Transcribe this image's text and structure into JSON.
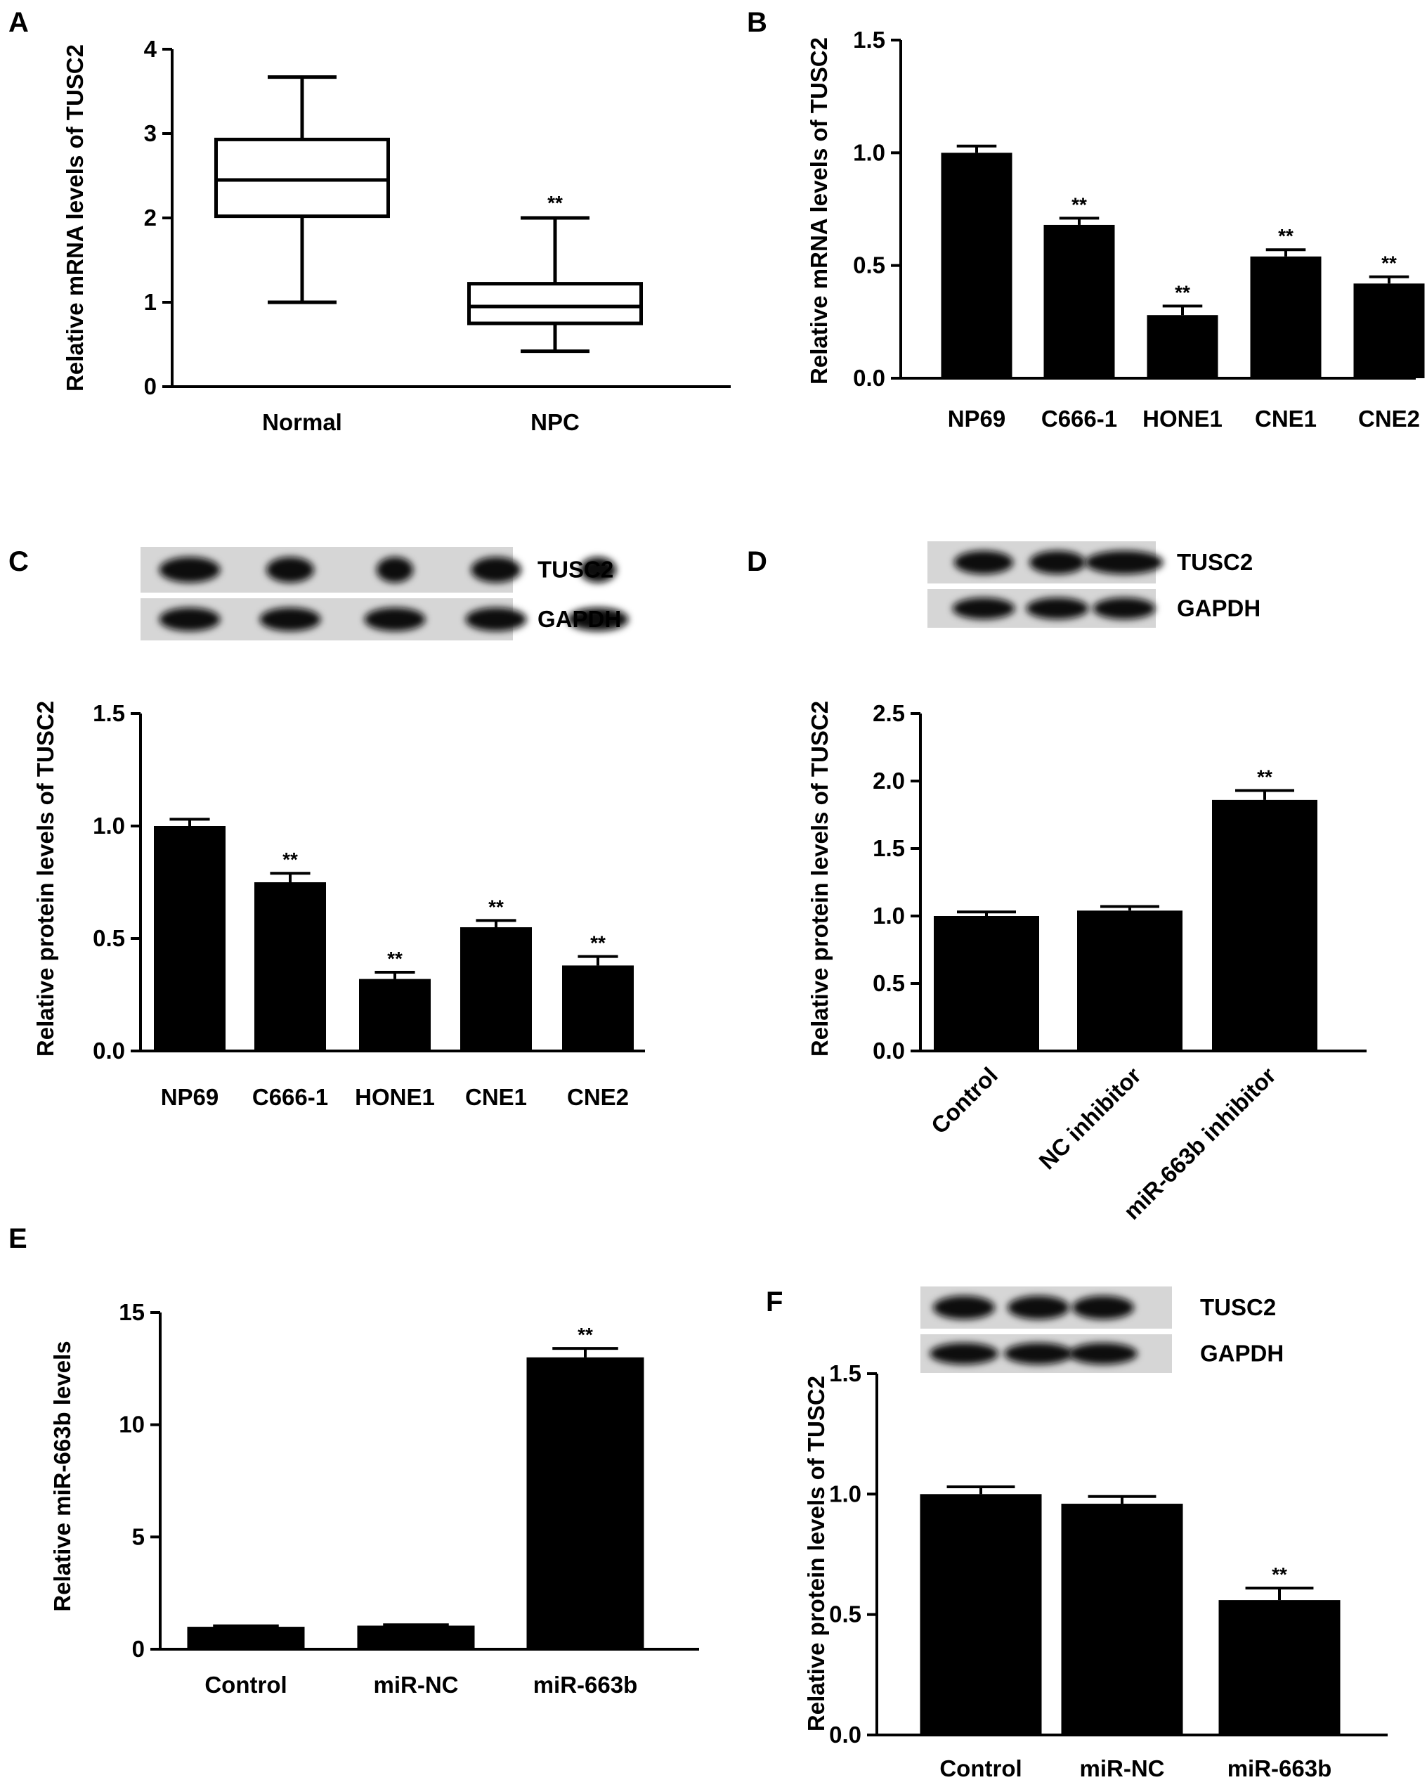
{
  "chart_data": [
    {
      "panel": "A",
      "type": "box",
      "ylabel": "Relative mRNA levels of TUSC2",
      "ylim": [
        0,
        4
      ],
      "yticks": [
        "0",
        "1",
        "2",
        "3",
        "4"
      ],
      "categories": [
        "Normal",
        "NPC"
      ],
      "boxes": [
        {
          "min": 1.0,
          "q1": 2.02,
          "median": 2.45,
          "q3": 2.93,
          "max": 3.67,
          "sig": ""
        },
        {
          "min": 0.42,
          "q1": 0.75,
          "median": 0.95,
          "q3": 1.22,
          "max": 2.0,
          "sig": "**"
        }
      ]
    },
    {
      "panel": "B",
      "type": "bar",
      "ylabel": "Relative mRNA levels of TUSC2",
      "ylim": [
        0,
        1.5
      ],
      "yticks": [
        "0.0",
        "0.5",
        "1.0",
        "1.5"
      ],
      "categories": [
        "NP69",
        "C666-1",
        "HONE1",
        "CNE1",
        "CNE2"
      ],
      "values": [
        1.0,
        0.68,
        0.28,
        0.54,
        0.42
      ],
      "errors": [
        0.03,
        0.03,
        0.04,
        0.03,
        0.03
      ],
      "sig": [
        "",
        "**",
        "**",
        "**",
        "**"
      ]
    },
    {
      "panel": "C",
      "type": "bar",
      "blot_labels": [
        "TUSC2",
        "GAPDH"
      ],
      "ylabel": "Relative protein levels of TUSC2",
      "ylim": [
        0,
        1.5
      ],
      "yticks": [
        "0.0",
        "0.5",
        "1.0",
        "1.5"
      ],
      "categories": [
        "NP69",
        "C666-1",
        "HONE1",
        "CNE1",
        "CNE2"
      ],
      "values": [
        1.0,
        0.75,
        0.32,
        0.55,
        0.38
      ],
      "errors": [
        0.03,
        0.04,
        0.03,
        0.03,
        0.04
      ],
      "sig": [
        "",
        "**",
        "**",
        "**",
        "**"
      ]
    },
    {
      "panel": "D",
      "type": "bar",
      "blot_labels": [
        "TUSC2",
        "GAPDH"
      ],
      "ylabel": "Relative protein levels of TUSC2",
      "ylim": [
        0,
        2.5
      ],
      "yticks": [
        "0.0",
        "0.5",
        "1.0",
        "1.5",
        "2.0",
        "2.5"
      ],
      "categories": [
        "Control",
        "NC inhibitor",
        "miR-663b inhibitor"
      ],
      "values": [
        1.0,
        1.04,
        1.86
      ],
      "errors": [
        0.03,
        0.03,
        0.07
      ],
      "sig": [
        "",
        "",
        "**"
      ]
    },
    {
      "panel": "E",
      "type": "bar",
      "ylabel": "Relative miR-663b levels",
      "ylim": [
        0,
        15
      ],
      "yticks": [
        "0",
        "5",
        "10",
        "15"
      ],
      "categories": [
        "Control",
        "miR-NC",
        "miR-663b"
      ],
      "values": [
        1.0,
        1.05,
        13.0
      ],
      "errors": [
        0.04,
        0.04,
        0.4
      ],
      "sig": [
        "",
        "",
        "**"
      ]
    },
    {
      "panel": "F",
      "type": "bar",
      "blot_labels": [
        "TUSC2",
        "GAPDH"
      ],
      "ylabel": "Relative protein levels of TUSC2",
      "ylim": [
        0,
        1.5
      ],
      "yticks": [
        "0.0",
        "0.5",
        "1.0",
        "1.5"
      ],
      "categories": [
        "Control",
        "miR-NC",
        "miR-663b"
      ],
      "values": [
        1.0,
        0.96,
        0.56
      ],
      "errors": [
        0.03,
        0.03,
        0.05
      ],
      "sig": [
        "",
        "",
        "**"
      ]
    }
  ]
}
